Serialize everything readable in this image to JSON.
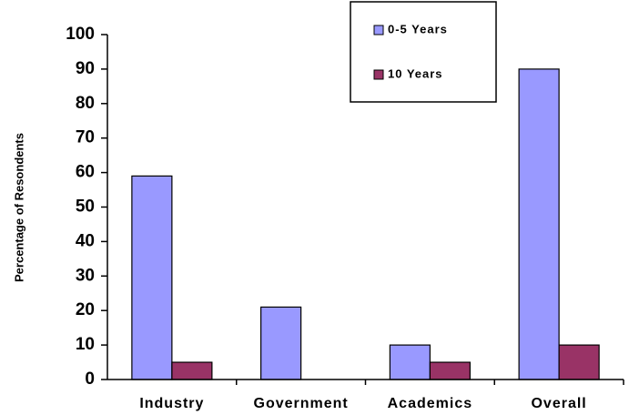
{
  "chart_data": {
    "type": "bar",
    "y_label": "Percentage of Resondents",
    "categories": [
      "Industry",
      "Government",
      "Academics",
      "Overall"
    ],
    "series": [
      {
        "name": "0-5 Years",
        "color": "#9999ff",
        "values": [
          59,
          21,
          10,
          90
        ]
      },
      {
        "name": "10 Years",
        "color": "#993366",
        "values": [
          5,
          0,
          5,
          10
        ]
      }
    ],
    "ylim": [
      0,
      100
    ],
    "yticks": [
      0,
      10,
      20,
      30,
      40,
      50,
      60,
      70,
      80,
      90,
      100
    ],
    "grid": false,
    "legend": "top-right"
  }
}
